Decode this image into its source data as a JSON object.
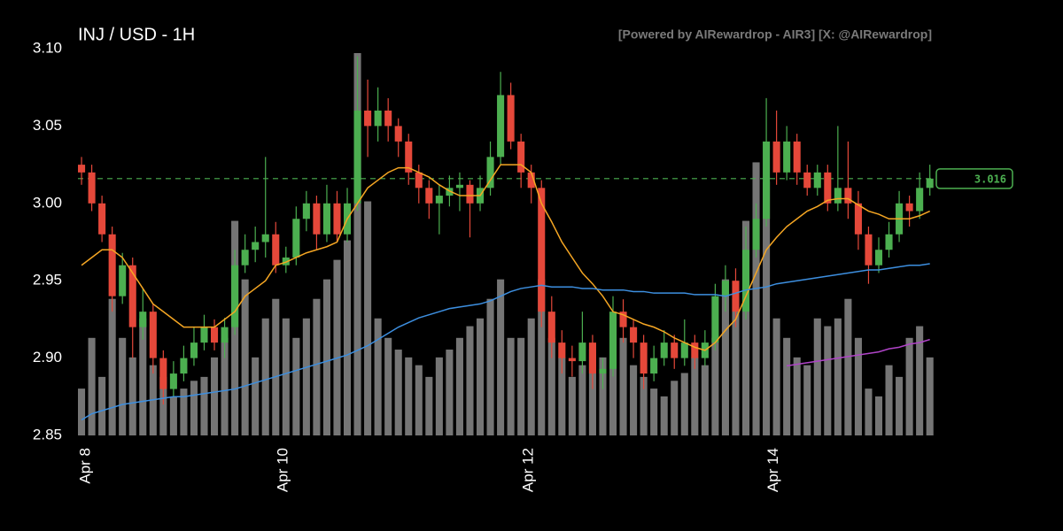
{
  "chart_data": {
    "type": "candlestick",
    "title": "INJ / USD - 1H",
    "watermark": "[Powered by AIRewardrop - AIR3] [X: @AIRewardrop]",
    "x": [
      8.5,
      10.5,
      12.5,
      14.5,
      16.5,
      18.5,
      20.5,
      22.5,
      24.5,
      26.5,
      28.5,
      30.5,
      32.5,
      34.5,
      36.5,
      38.5,
      40.5,
      42.5,
      44.5,
      46.5,
      48.5,
      50.5,
      52.5,
      54.5,
      56.5,
      58.5,
      60.5,
      62.5,
      64.5,
      66.5,
      68.5,
      70.5,
      72.5,
      74.5,
      76.5,
      78.5,
      80.5,
      82.5,
      84.5,
      86.5,
      88.5,
      90.5,
      92.5,
      94.5,
      96.5,
      98.5,
      100.5,
      102.5,
      104.5,
      106.5,
      108.5,
      110.5,
      112.5,
      114.5,
      116.5,
      118.5,
      120.5,
      122.5,
      124.5,
      126.5,
      128.5,
      130.5,
      132.5,
      134.5,
      136.5,
      138.5,
      140.5,
      142.5,
      144.5,
      146.5,
      148.5,
      150.5,
      152.5,
      154.5,
      156.5,
      158.5,
      160.5,
      162.5,
      164.5,
      166.5,
      168.5,
      170.5,
      172.5,
      174.5
    ],
    "xlim": [
      7.8,
      174.9
    ],
    "xticks": [
      {
        "value": 9.4,
        "label": "Apr 8"
      },
      {
        "value": 48,
        "label": "Apr 10"
      },
      {
        "value": 96,
        "label": "Apr 12"
      },
      {
        "value": 144,
        "label": "Apr 14"
      }
    ],
    "ylim": [
      2.85,
      3.1
    ],
    "yticks": [
      2.85,
      {
        "value": 2.9,
        "label": "2.90"
      },
      2.95,
      {
        "value": 3,
        "label": "3.00"
      },
      3.05,
      {
        "value": 3.1,
        "label": "3.10"
      }
    ],
    "open": [
      3.025,
      3.02,
      3.0,
      2.98,
      2.94,
      2.96,
      2.92,
      2.93,
      2.9,
      2.88,
      2.89,
      2.9,
      2.91,
      2.92,
      2.91,
      2.92,
      2.96,
      2.97,
      2.975,
      2.98,
      2.96,
      2.965,
      2.99,
      3.0,
      2.98,
      3.0,
      2.98,
      3.0,
      3.06,
      3.05,
      3.06,
      3.05,
      3.04,
      3.02,
      3.01,
      3.0,
      3.005,
      3.01,
      3.012,
      3.0,
      3.01,
      3.03,
      3.07,
      3.04,
      3.02,
      3.01,
      2.93,
      2.91,
      2.9,
      2.898,
      2.91,
      2.89,
      2.893,
      2.93,
      2.92,
      2.91,
      2.89,
      2.9,
      2.91,
      2.9,
      2.91,
      2.9,
      2.91,
      2.94,
      2.95,
      2.93,
      2.97,
      2.99,
      3.04,
      3.02,
      3.04,
      3.02,
      3.01,
      3.02,
      3.0,
      3.01,
      3.0,
      2.98,
      2.96,
      2.97,
      2.98,
      3.0,
      2.995,
      3.01
    ],
    "high": [
      3.03,
      3.025,
      3.005,
      2.985,
      2.968,
      2.965,
      2.945,
      2.935,
      2.905,
      2.898,
      2.908,
      2.92,
      2.928,
      2.925,
      2.926,
      2.97,
      2.98,
      2.985,
      3.03,
      2.988,
      2.972,
      2.998,
      3.008,
      3.005,
      3.012,
      3.008,
      3.01,
      3.095,
      3.08,
      3.075,
      3.068,
      3.055,
      3.045,
      3.025,
      3.015,
      3.012,
      3.018,
      3.02,
      3.015,
      3.018,
      3.04,
      3.085,
      3.078,
      3.045,
      3.025,
      3.015,
      2.94,
      2.918,
      2.908,
      2.93,
      2.915,
      2.9,
      2.94,
      2.938,
      2.925,
      2.915,
      2.908,
      2.918,
      2.915,
      2.925,
      2.915,
      2.918,
      2.948,
      2.96,
      2.958,
      2.985,
      3.0,
      3.068,
      3.06,
      3.05,
      3.045,
      3.025,
      3.025,
      3.025,
      3.05,
      3.04,
      3.008,
      2.985,
      2.978,
      2.988,
      3.008,
      3.005,
      3.02,
      3.025
    ],
    "low": [
      3.012,
      2.995,
      2.975,
      2.93,
      2.935,
      2.9,
      2.912,
      2.89,
      2.87,
      2.875,
      2.885,
      2.895,
      2.905,
      2.905,
      2.9,
      2.915,
      2.955,
      2.962,
      2.965,
      2.955,
      2.955,
      2.96,
      2.982,
      2.97,
      2.975,
      2.975,
      2.975,
      2.995,
      3.03,
      3.04,
      3.04,
      3.03,
      3.012,
      3.0,
      2.99,
      2.98,
      2.998,
      2.995,
      2.978,
      2.995,
      3.005,
      3.025,
      3.035,
      3.01,
      3.0,
      2.92,
      2.9,
      2.89,
      2.888,
      2.89,
      2.88,
      2.88,
      2.888,
      2.91,
      2.9,
      2.88,
      2.885,
      2.895,
      2.893,
      2.895,
      2.893,
      2.895,
      2.905,
      2.93,
      2.92,
      2.925,
      2.965,
      2.985,
      3.012,
      3.015,
      3.012,
      3.005,
      3.005,
      2.995,
      2.995,
      2.99,
      2.97,
      2.948,
      2.955,
      2.965,
      2.975,
      2.985,
      2.99,
      3.005
    ],
    "close": [
      3.02,
      3.0,
      2.98,
      2.94,
      2.96,
      2.92,
      2.93,
      2.9,
      2.88,
      2.89,
      2.9,
      2.91,
      2.92,
      2.91,
      2.92,
      2.96,
      2.97,
      2.975,
      2.98,
      2.96,
      2.965,
      2.99,
      3.0,
      2.98,
      3.0,
      2.98,
      3.0,
      3.06,
      3.05,
      3.06,
      3.05,
      3.04,
      3.02,
      3.01,
      3.0,
      3.005,
      3.01,
      3.012,
      3.0,
      3.01,
      3.03,
      3.07,
      3.04,
      3.02,
      3.01,
      2.93,
      2.91,
      2.9,
      2.898,
      2.91,
      2.89,
      2.893,
      2.93,
      2.92,
      2.91,
      2.89,
      2.9,
      2.91,
      2.9,
      2.91,
      2.9,
      2.91,
      2.94,
      2.95,
      2.93,
      2.97,
      2.99,
      3.04,
      3.02,
      3.04,
      3.02,
      3.01,
      3.02,
      3.0,
      3.01,
      3.0,
      2.98,
      2.96,
      2.97,
      2.98,
      3.0,
      2.995,
      3.01,
      3.016
    ],
    "volume": [
      12,
      25,
      15,
      35,
      25,
      20,
      30,
      18,
      15,
      10,
      12,
      14,
      15,
      20,
      25,
      55,
      40,
      20,
      30,
      35,
      30,
      25,
      30,
      35,
      40,
      45,
      50,
      98,
      60,
      30,
      25,
      22,
      20,
      18,
      15,
      20,
      22,
      25,
      28,
      30,
      35,
      40,
      25,
      25,
      30,
      40,
      25,
      20,
      15,
      18,
      22,
      20,
      30,
      25,
      18,
      15,
      12,
      10,
      14,
      16,
      20,
      18,
      25,
      40,
      35,
      55,
      70,
      65,
      30,
      25,
      20,
      18,
      30,
      28,
      30,
      35,
      25,
      12,
      10,
      18,
      15,
      25,
      28,
      20
    ],
    "up_color": "#4caf50",
    "down_color": "#e5483a",
    "volume_color": "#8a8a8a",
    "moving_averages": [
      {
        "color": "#f5a623",
        "values": [
          2.96,
          2.965,
          2.97,
          2.97,
          2.965,
          2.955,
          2.945,
          2.935,
          2.93,
          2.925,
          2.92,
          2.92,
          2.92,
          2.92,
          2.925,
          2.93,
          2.94,
          2.945,
          2.95,
          2.96,
          2.962,
          2.965,
          2.968,
          2.97,
          2.972,
          2.975,
          2.99,
          3.0,
          3.01,
          3.015,
          3.02,
          3.023,
          3.023,
          3.02,
          3.017,
          3.012,
          3.008,
          3.005,
          3.005,
          3.005,
          3.015,
          3.025,
          3.025,
          3.025,
          3.02,
          3.0,
          2.988,
          2.975,
          2.965,
          2.955,
          2.948,
          2.94,
          2.93,
          2.928,
          2.925,
          2.922,
          2.92,
          2.917,
          2.913,
          2.91,
          2.907,
          2.905,
          2.91,
          2.918,
          2.925,
          2.94,
          2.955,
          2.97,
          2.978,
          2.985,
          2.99,
          2.995,
          2.998,
          3.002,
          3.003,
          3.003,
          2.999,
          2.995,
          2.993,
          2.99,
          2.99,
          2.99,
          2.992,
          2.995
        ]
      },
      {
        "color": "#3d8fe0",
        "values": [
          2.86,
          2.864,
          2.866,
          2.868,
          2.87,
          2.871,
          2.872,
          2.873,
          2.874,
          2.875,
          2.875,
          2.876,
          2.877,
          2.878,
          2.879,
          2.88,
          2.882,
          2.884,
          2.886,
          2.888,
          2.89,
          2.892,
          2.894,
          2.896,
          2.898,
          2.9,
          2.902,
          2.905,
          2.908,
          2.912,
          2.916,
          2.92,
          2.923,
          2.926,
          2.928,
          2.93,
          2.932,
          2.933,
          2.934,
          2.935,
          2.937,
          2.94,
          2.943,
          2.945,
          2.946,
          2.947,
          2.946,
          2.946,
          2.946,
          2.945,
          2.945,
          2.944,
          2.944,
          2.944,
          2.943,
          2.943,
          2.942,
          2.942,
          2.942,
          2.942,
          2.941,
          2.941,
          2.941,
          2.94,
          2.942,
          2.944,
          2.945,
          2.946,
          2.948,
          2.949,
          2.95,
          2.951,
          2.952,
          2.953,
          2.954,
          2.955,
          2.956,
          2.957,
          2.957,
          2.958,
          2.959,
          2.96,
          2.96,
          2.961
        ]
      },
      {
        "color": "#b044c8",
        "values": [
          null,
          null,
          null,
          null,
          null,
          null,
          null,
          null,
          null,
          null,
          null,
          null,
          null,
          null,
          null,
          null,
          null,
          null,
          null,
          null,
          null,
          null,
          null,
          null,
          null,
          null,
          null,
          null,
          null,
          null,
          null,
          null,
          null,
          null,
          null,
          null,
          null,
          null,
          null,
          null,
          null,
          null,
          null,
          null,
          null,
          null,
          null,
          null,
          null,
          null,
          null,
          null,
          null,
          null,
          null,
          null,
          null,
          null,
          null,
          null,
          null,
          null,
          null,
          null,
          null,
          null,
          null,
          null,
          null,
          2.895,
          2.896,
          2.897,
          2.898,
          2.899,
          2.9,
          2.901,
          2.902,
          2.903,
          2.904,
          2.906,
          2.907,
          2.909,
          2.91,
          2.912
        ]
      }
    ],
    "last_price": 3.016,
    "last_price_color": "#4caf50"
  }
}
